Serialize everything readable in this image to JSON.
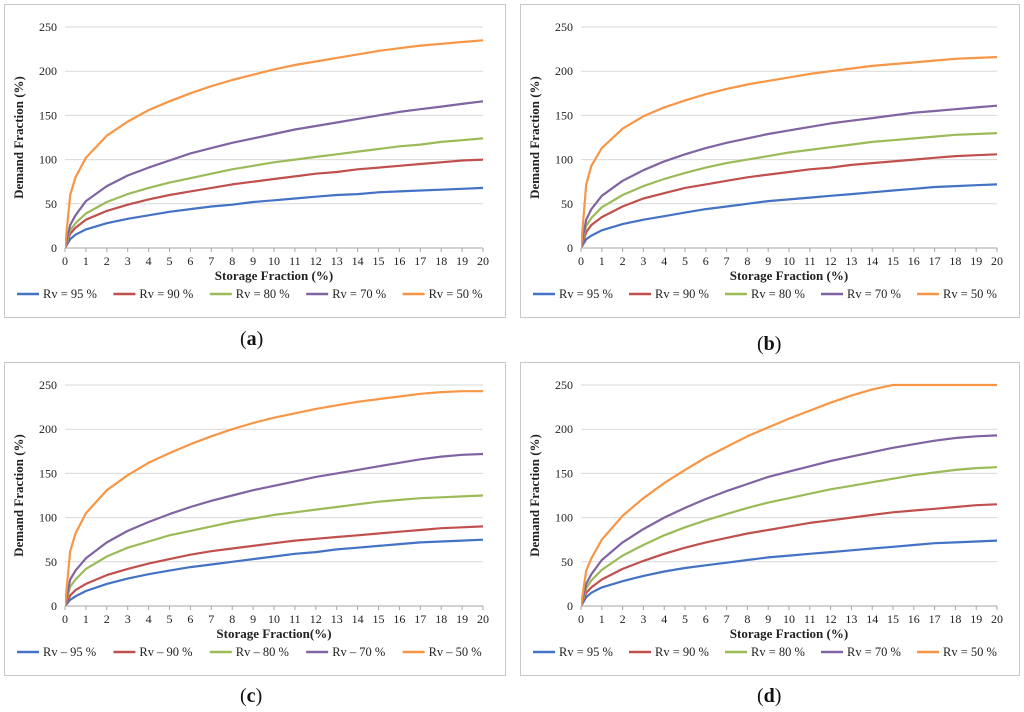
{
  "colors": {
    "rv95": "#4472C4",
    "rv90": "#C0504D",
    "rv80": "#9BBB59",
    "rv70": "#8064A2",
    "rv50": "#F79646",
    "grid": "#d9d9d9",
    "axis": "#a6a6a6"
  },
  "chart_data": [
    {
      "type": "line",
      "panel_label": "a",
      "xlabel": "Storage Fraction (%)",
      "ylabel": "Demand Fraction (%)",
      "xlim": [
        0,
        20
      ],
      "ylim": [
        0,
        250
      ],
      "x_ticks": [
        "0",
        "1",
        "2",
        "3",
        "4",
        "5",
        "6",
        "7",
        "8",
        "9",
        "10",
        "11",
        "12",
        "13",
        "14",
        "15",
        "16",
        "17",
        "18",
        "19",
        "20"
      ],
      "y_ticks": [
        "0",
        "50",
        "100",
        "150",
        "200",
        "250"
      ],
      "grid": true,
      "legend_position": "bottom",
      "x": [
        0,
        0.25,
        0.5,
        1,
        2,
        3,
        4,
        5,
        6,
        7,
        8,
        9,
        10,
        11,
        12,
        13,
        14,
        15,
        16,
        17,
        18,
        19,
        20
      ],
      "series": [
        {
          "name": "Rv = 95 %",
          "color_key": "rv95",
          "values": [
            0,
            10,
            15,
            21,
            28,
            33,
            37,
            41,
            44,
            47,
            49,
            52,
            54,
            56,
            58,
            60,
            61,
            63,
            64,
            65,
            66,
            67,
            68
          ]
        },
        {
          "name": "Rv = 90 %",
          "color_key": "rv90",
          "values": [
            0,
            16,
            23,
            32,
            42,
            49,
            55,
            60,
            64,
            68,
            72,
            75,
            78,
            81,
            84,
            86,
            89,
            91,
            93,
            95,
            97,
            99,
            100
          ]
        },
        {
          "name": "Rv = 80 %",
          "color_key": "rv80",
          "values": [
            0,
            20,
            28,
            39,
            52,
            61,
            68,
            74,
            79,
            84,
            89,
            93,
            97,
            100,
            103,
            106,
            109,
            112,
            115,
            117,
            120,
            122,
            124
          ]
        },
        {
          "name": "Rv = 70 %",
          "color_key": "rv70",
          "values": [
            0,
            26,
            37,
            53,
            70,
            82,
            91,
            99,
            107,
            113,
            119,
            124,
            129,
            134,
            138,
            142,
            146,
            150,
            154,
            157,
            160,
            163,
            166
          ]
        },
        {
          "name": "Rv = 50 %",
          "color_key": "rv50",
          "values": [
            0,
            60,
            80,
            102,
            127,
            143,
            156,
            166,
            175,
            183,
            190,
            196,
            202,
            207,
            211,
            215,
            219,
            223,
            226,
            229,
            231,
            233,
            235
          ]
        }
      ]
    },
    {
      "type": "line",
      "panel_label": "b",
      "xlabel": "Storage Fraction (%)",
      "ylabel": "Demand Fraction (%)",
      "xlim": [
        0,
        20
      ],
      "ylim": [
        0,
        250
      ],
      "x_ticks": [
        "0",
        "1",
        "2",
        "3",
        "4",
        "5",
        "6",
        "7",
        "8",
        "9",
        "10",
        "11",
        "12",
        "13",
        "14",
        "15",
        "16",
        "17",
        "18",
        "19",
        "20"
      ],
      "y_ticks": [
        "0",
        "50",
        "100",
        "150",
        "200",
        "250"
      ],
      "grid": true,
      "legend_position": "bottom",
      "x": [
        0,
        0.25,
        0.5,
        1,
        2,
        3,
        4,
        5,
        6,
        7,
        8,
        9,
        10,
        11,
        12,
        13,
        14,
        15,
        16,
        17,
        18,
        19,
        20
      ],
      "series": [
        {
          "name": "Rv = 95 %",
          "color_key": "rv95",
          "values": [
            0,
            10,
            14,
            20,
            27,
            32,
            36,
            40,
            44,
            47,
            50,
            53,
            55,
            57,
            59,
            61,
            63,
            65,
            67,
            69,
            70,
            71,
            72
          ]
        },
        {
          "name": "Rv = 90 %",
          "color_key": "rv90",
          "values": [
            0,
            18,
            26,
            35,
            47,
            56,
            62,
            68,
            72,
            76,
            80,
            83,
            86,
            89,
            91,
            94,
            96,
            98,
            100,
            102,
            104,
            105,
            106
          ]
        },
        {
          "name": "Rv = 80 %",
          "color_key": "rv80",
          "values": [
            0,
            25,
            34,
            46,
            60,
            70,
            78,
            85,
            91,
            96,
            100,
            104,
            108,
            111,
            114,
            117,
            120,
            122,
            124,
            126,
            128,
            129,
            130
          ]
        },
        {
          "name": "Rv = 70 %",
          "color_key": "rv70",
          "values": [
            0,
            32,
            44,
            59,
            76,
            88,
            98,
            106,
            113,
            119,
            124,
            129,
            133,
            137,
            141,
            144,
            147,
            150,
            153,
            155,
            157,
            159,
            161
          ]
        },
        {
          "name": "Rv = 50 %",
          "color_key": "rv50",
          "values": [
            0,
            72,
            93,
            113,
            135,
            149,
            159,
            167,
            174,
            180,
            185,
            189,
            193,
            197,
            200,
            203,
            206,
            208,
            210,
            212,
            214,
            215,
            216
          ]
        }
      ]
    },
    {
      "type": "line",
      "panel_label": "c",
      "xlabel": "Storage Fraction(%)",
      "ylabel": "Demand Fraction (%)",
      "xlim": [
        0,
        20
      ],
      "ylim": [
        0,
        250
      ],
      "x_ticks": [
        "0",
        "1",
        "2",
        "3",
        "4",
        "5",
        "6",
        "7",
        "8",
        "9",
        "10",
        "11",
        "12",
        "13",
        "14",
        "15",
        "16",
        "17",
        "18",
        "19",
        "20"
      ],
      "y_ticks": [
        "0",
        "50",
        "100",
        "150",
        "200",
        "250"
      ],
      "grid": true,
      "legend_position": "bottom",
      "x": [
        0,
        0.25,
        0.5,
        1,
        2,
        3,
        4,
        5,
        6,
        7,
        8,
        9,
        10,
        11,
        12,
        13,
        14,
        15,
        16,
        17,
        18,
        19,
        20
      ],
      "series": [
        {
          "name": "Rv – 95 %",
          "color_key": "rv95",
          "values": [
            0,
            7,
            11,
            17,
            25,
            31,
            36,
            40,
            44,
            47,
            50,
            53,
            56,
            59,
            61,
            64,
            66,
            68,
            70,
            72,
            73,
            74,
            75
          ]
        },
        {
          "name": "Rv – 90 %",
          "color_key": "rv90",
          "values": [
            0,
            12,
            18,
            25,
            35,
            42,
            48,
            53,
            58,
            62,
            65,
            68,
            71,
            74,
            76,
            78,
            80,
            82,
            84,
            86,
            88,
            89,
            90
          ]
        },
        {
          "name": "Rv – 80 %",
          "color_key": "rv80",
          "values": [
            0,
            22,
            30,
            42,
            56,
            66,
            73,
            80,
            85,
            90,
            95,
            99,
            103,
            106,
            109,
            112,
            115,
            118,
            120,
            122,
            123,
            124,
            125
          ]
        },
        {
          "name": "Rv – 70 %",
          "color_key": "rv70",
          "values": [
            0,
            30,
            40,
            54,
            72,
            85,
            95,
            104,
            112,
            119,
            125,
            131,
            136,
            141,
            146,
            150,
            154,
            158,
            162,
            166,
            169,
            171,
            172
          ]
        },
        {
          "name": "Rv – 50 %",
          "color_key": "rv50",
          "values": [
            0,
            62,
            82,
            105,
            131,
            148,
            162,
            173,
            183,
            192,
            200,
            207,
            213,
            218,
            223,
            227,
            231,
            234,
            237,
            240,
            242,
            243,
            243
          ]
        }
      ]
    },
    {
      "type": "line",
      "panel_label": "d",
      "xlabel": "Storage Fraction (%)",
      "ylabel": "Demand Fraction (%)",
      "xlim": [
        0,
        20
      ],
      "ylim": [
        0,
        250
      ],
      "x_ticks": [
        "0",
        "1",
        "2",
        "3",
        "4",
        "5",
        "6",
        "7",
        "8",
        "9",
        "10",
        "11",
        "12",
        "13",
        "14",
        "15",
        "16",
        "17",
        "18",
        "19",
        "20"
      ],
      "y_ticks": [
        "0",
        "50",
        "100",
        "150",
        "200",
        "250"
      ],
      "grid": true,
      "legend_position": "bottom",
      "x": [
        0,
        0.25,
        0.5,
        1,
        2,
        3,
        4,
        5,
        6,
        7,
        8,
        9,
        10,
        11,
        12,
        13,
        14,
        15,
        16,
        17,
        18,
        19,
        20
      ],
      "series": [
        {
          "name": "Rv = 95 %",
          "color_key": "rv95",
          "values": [
            0,
            10,
            15,
            21,
            28,
            34,
            39,
            43,
            46,
            49,
            52,
            55,
            57,
            59,
            61,
            63,
            65,
            67,
            69,
            71,
            72,
            73,
            74
          ]
        },
        {
          "name": "Rv = 90 %",
          "color_key": "rv90",
          "values": [
            0,
            15,
            21,
            30,
            42,
            51,
            59,
            66,
            72,
            77,
            82,
            86,
            90,
            94,
            97,
            100,
            103,
            106,
            108,
            110,
            112,
            114,
            115
          ]
        },
        {
          "name": "Rv = 80 %",
          "color_key": "rv80",
          "values": [
            0,
            20,
            29,
            41,
            57,
            69,
            80,
            89,
            97,
            104,
            111,
            117,
            122,
            127,
            132,
            136,
            140,
            144,
            148,
            151,
            154,
            156,
            157
          ]
        },
        {
          "name": "Rv = 70 %",
          "color_key": "rv70",
          "values": [
            0,
            25,
            36,
            52,
            72,
            87,
            100,
            111,
            121,
            130,
            138,
            146,
            152,
            158,
            164,
            169,
            174,
            179,
            183,
            187,
            190,
            192,
            193
          ]
        },
        {
          "name": "Rv = 50 %",
          "color_key": "rv50",
          "values": [
            0,
            40,
            54,
            75,
            102,
            122,
            139,
            154,
            168,
            180,
            192,
            202,
            212,
            221,
            230,
            238,
            245,
            250,
            250,
            250,
            250,
            250,
            250
          ]
        }
      ]
    }
  ]
}
